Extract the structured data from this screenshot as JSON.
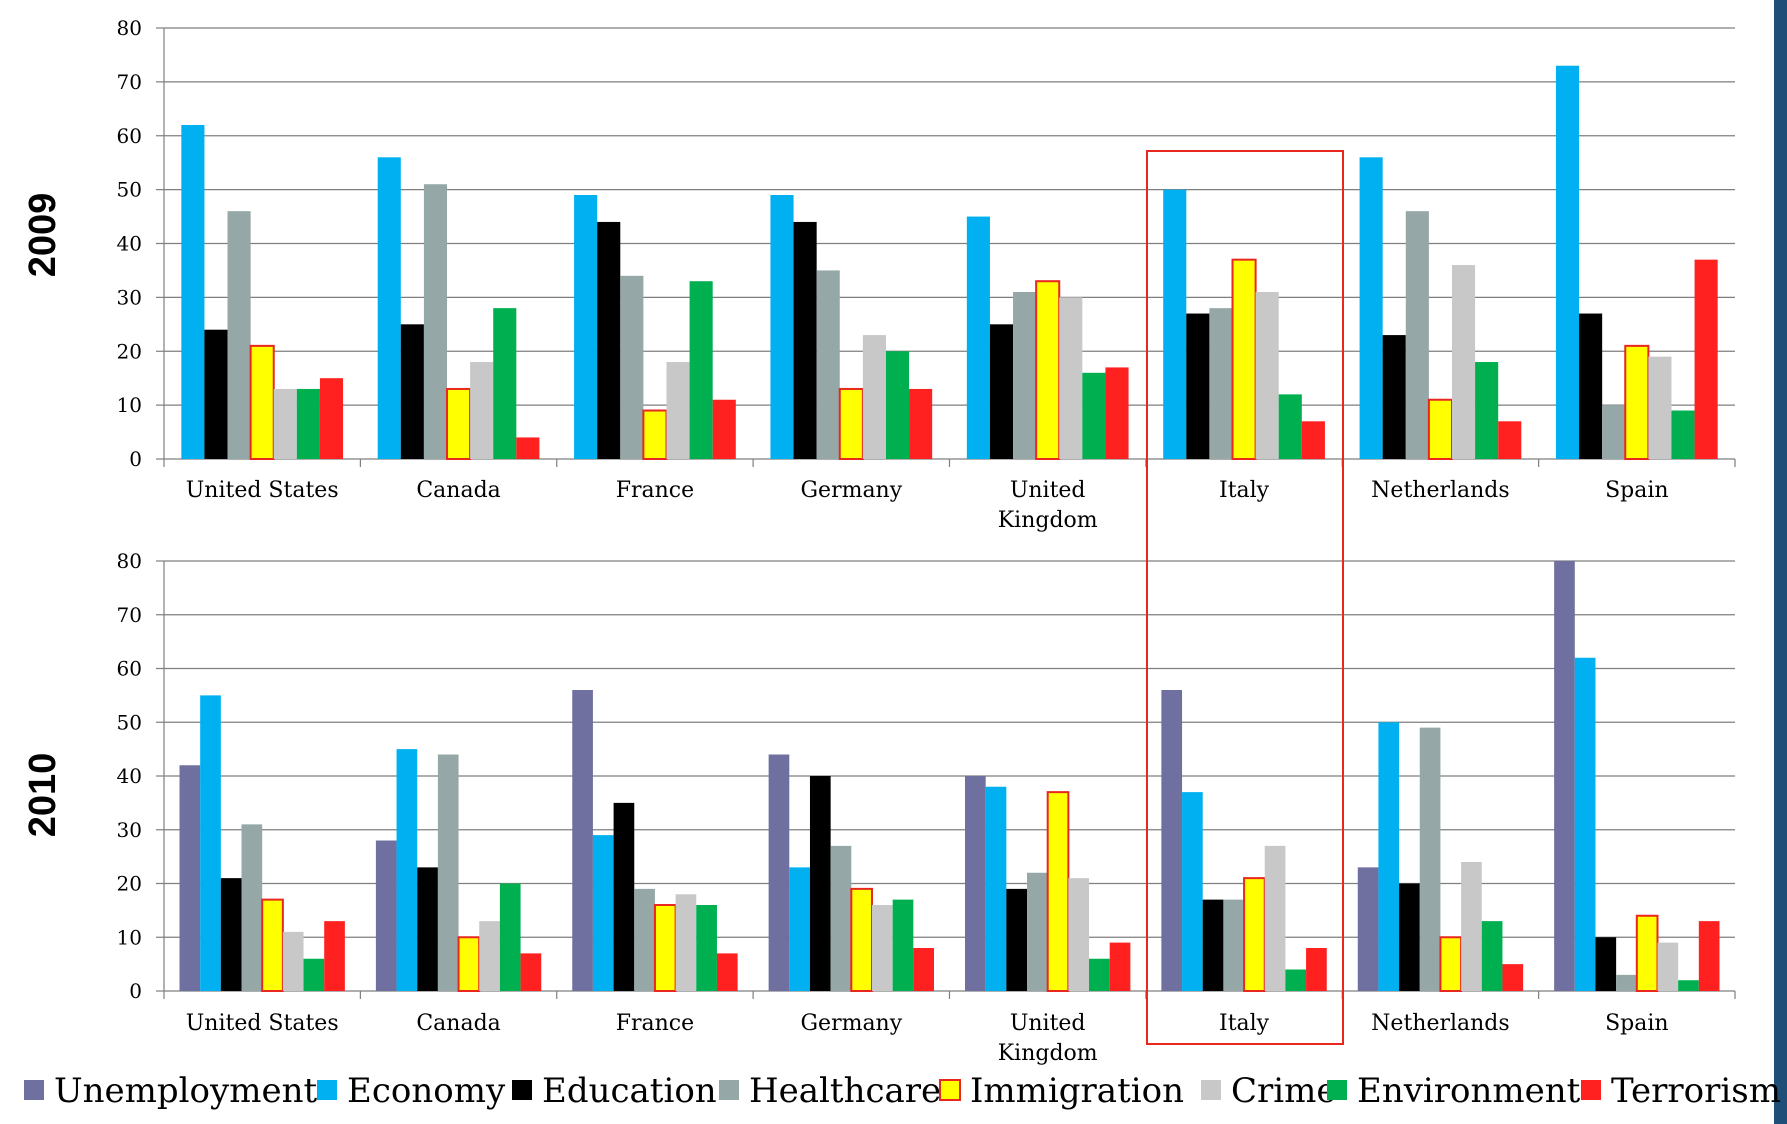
{
  "chart_data": [
    {
      "type": "bar",
      "title": "2009",
      "categories": [
        [
          "United States"
        ],
        [
          "Canada"
        ],
        [
          "France"
        ],
        [
          "Germany"
        ],
        [
          "United",
          "Kingdom"
        ],
        [
          "Italy"
        ],
        [
          "Netherlands"
        ],
        [
          "Spain"
        ]
      ],
      "ylim": [
        0,
        80
      ],
      "yticks": [
        0,
        10,
        20,
        30,
        40,
        50,
        60,
        70,
        80
      ],
      "grid": true,
      "series": [
        {
          "name": "Economy",
          "color": "#00B0F0",
          "values": [
            62,
            56,
            49,
            49,
            45,
            50,
            56,
            73
          ]
        },
        {
          "name": "Education",
          "color": "#000000",
          "values": [
            24,
            25,
            44,
            44,
            25,
            27,
            23,
            27
          ]
        },
        {
          "name": "Healthcare",
          "color": "#95A8A7",
          "values": [
            46,
            51,
            34,
            35,
            31,
            28,
            46,
            10
          ]
        },
        {
          "name": "Immigration",
          "color": "#FFFF00",
          "stroke": "#E8271F",
          "values": [
            21,
            13,
            9,
            13,
            33,
            37,
            11,
            21
          ]
        },
        {
          "name": "Crime",
          "color": "#C8C8C8",
          "values": [
            13,
            18,
            18,
            23,
            30,
            31,
            36,
            19
          ]
        },
        {
          "name": "Environment",
          "color": "#00B050",
          "values": [
            13,
            28,
            33,
            20,
            16,
            12,
            18,
            9
          ]
        },
        {
          "name": "Terrorism",
          "color": "#FF2020",
          "values": [
            15,
            4,
            11,
            13,
            17,
            7,
            7,
            37
          ]
        }
      ]
    },
    {
      "type": "bar",
      "title": "2010",
      "categories": [
        [
          "United States"
        ],
        [
          "Canada"
        ],
        [
          "France"
        ],
        [
          "Germany"
        ],
        [
          "United",
          "Kingdom"
        ],
        [
          "Italy"
        ],
        [
          "Netherlands"
        ],
        [
          "Spain"
        ]
      ],
      "ylim": [
        0,
        80
      ],
      "yticks": [
        0,
        10,
        20,
        30,
        40,
        50,
        60,
        70,
        80
      ],
      "grid": true,
      "series": [
        {
          "name": "Unemployment",
          "color": "#7070A0",
          "values": [
            42,
            28,
            56,
            44,
            40,
            56,
            23,
            80
          ]
        },
        {
          "name": "Economy",
          "color": "#00B0F0",
          "values": [
            55,
            45,
            29,
            23,
            38,
            37,
            50,
            62
          ]
        },
        {
          "name": "Education",
          "color": "#000000",
          "values": [
            21,
            23,
            35,
            40,
            19,
            17,
            20,
            10
          ]
        },
        {
          "name": "Healthcare",
          "color": "#95A8A7",
          "values": [
            31,
            44,
            19,
            27,
            22,
            17,
            49,
            3
          ]
        },
        {
          "name": "Immigration",
          "color": "#FFFF00",
          "stroke": "#E8271F",
          "values": [
            17,
            10,
            16,
            19,
            37,
            21,
            10,
            14
          ]
        },
        {
          "name": "Crime",
          "color": "#C8C8C8",
          "values": [
            11,
            13,
            18,
            16,
            21,
            27,
            24,
            9
          ]
        },
        {
          "name": "Environment",
          "color": "#00B050",
          "values": [
            6,
            20,
            16,
            17,
            6,
            4,
            13,
            2
          ]
        },
        {
          "name": "Terrorism",
          "color": "#FF2020",
          "values": [
            13,
            7,
            7,
            8,
            9,
            8,
            5,
            13
          ]
        }
      ]
    }
  ],
  "legend": [
    {
      "name": "Unemployment",
      "color": "#7070A0"
    },
    {
      "name": "Economy",
      "color": "#00B0F0"
    },
    {
      "name": "Education",
      "color": "#000000"
    },
    {
      "name": "Healthcare",
      "color": "#95A8A7"
    },
    {
      "name": "Immigration",
      "color": "#FFFF00",
      "stroke": "#E8271F"
    },
    {
      "name": "Crime",
      "color": "#C8C8C8"
    },
    {
      "name": "Environment",
      "color": "#00B050"
    },
    {
      "name": "Terrorism",
      "color": "#FF2020"
    }
  ],
  "highlight": {
    "category": "Italy",
    "color": "#E8271F"
  },
  "colors": {
    "gridline": "#7F7F7F",
    "axis": "#7F7F7F",
    "right_edge_bar": "#1F4E79"
  }
}
